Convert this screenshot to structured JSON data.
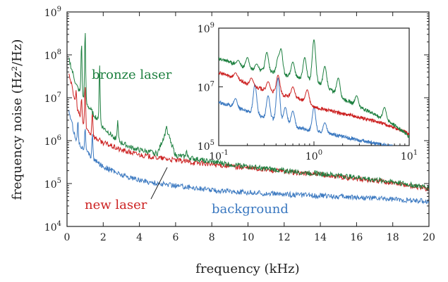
{
  "chart_data": {
    "type": "line",
    "main": {
      "xlabel": "frequency (kHz)",
      "ylabel": "frequency noise (Hz²/Hz)",
      "xlim": [
        0,
        20
      ],
      "ylim": [
        10000,
        1000000000
      ],
      "yscale": "log",
      "xticks": [
        "0",
        "2",
        "4",
        "6",
        "8",
        "10",
        "12",
        "14",
        "16",
        "18",
        "20"
      ],
      "yticks": [
        {
          "base": "10",
          "exp": "4"
        },
        {
          "base": "10",
          "exp": "5"
        },
        {
          "base": "10",
          "exp": "6"
        },
        {
          "base": "10",
          "exp": "7"
        },
        {
          "base": "10",
          "exp": "8"
        },
        {
          "base": "10",
          "exp": "9"
        }
      ],
      "grid": false,
      "series": [
        {
          "name": "bronze laser",
          "color": "#1e8040",
          "x": [
            0.1,
            0.5,
            1,
            1.5,
            2,
            2.5,
            3,
            3.5,
            4,
            5,
            5.5,
            6,
            6.5,
            7,
            8,
            10,
            12,
            14,
            16,
            18,
            20
          ],
          "y": [
            80000000,
            20000000,
            8000000,
            4000000,
            2000000,
            1300000,
            900000,
            700000,
            600000,
            500000,
            1800000,
            450000,
            420000,
            380000,
            320000,
            250000,
            200000,
            170000,
            140000,
            110000,
            80000
          ],
          "peaks": [
            [
              0.8,
              200000000
            ],
            [
              1.0,
              400000000
            ],
            [
              1.8,
              60000000
            ],
            [
              2.8,
              3000000
            ],
            [
              5.5,
              2200000
            ],
            [
              6.6,
              600000
            ]
          ]
        },
        {
          "name": "new laser",
          "color": "#cc2222",
          "x": [
            0.1,
            0.5,
            1,
            1.5,
            2,
            3,
            4,
            5,
            6,
            7,
            8,
            10,
            12,
            14,
            16,
            18,
            20
          ],
          "y": [
            40000000,
            6000000,
            2000000,
            1200000,
            900000,
            600000,
            470000,
            400000,
            350000,
            310000,
            280000,
            230000,
            190000,
            160000,
            130000,
            105000,
            75000
          ],
          "peaks": [
            [
              0.5,
              15000000
            ],
            [
              0.8,
              10000000
            ],
            [
              1.0,
              20000000
            ],
            [
              1.4,
              5000000
            ]
          ]
        },
        {
          "name": "background",
          "color": "#3a78c0",
          "x": [
            0.1,
            0.5,
            1,
            1.5,
            2,
            3,
            4,
            5,
            6,
            7,
            8,
            10,
            12,
            14,
            16,
            18,
            20
          ],
          "y": [
            5000000,
            1000000,
            600000,
            350000,
            250000,
            160000,
            120000,
            100000,
            90000,
            80000,
            70000,
            62000,
            56000,
            52000,
            48000,
            43000,
            38000
          ],
          "peaks": [
            [
              0.6,
              3000000
            ],
            [
              1.0,
              2000000
            ],
            [
              1.4,
              1500000
            ]
          ]
        }
      ],
      "annotations": [
        {
          "text": "bronze laser",
          "color": "#1e8040"
        },
        {
          "text": "new laser",
          "color": "#cc2222"
        },
        {
          "text": "background",
          "color": "#3a78c0"
        }
      ]
    },
    "inset": {
      "xscale": "log",
      "yscale": "log",
      "xlim": [
        0.1,
        10
      ],
      "ylim": [
        100000,
        1000000000
      ],
      "xticks": [
        {
          "base": "10",
          "exp": "-1"
        },
        {
          "base": "10",
          "exp": "0"
        },
        {
          "base": "10",
          "exp": "1"
        }
      ],
      "yticks": [
        {
          "base": "10",
          "exp": "5"
        },
        {
          "base": "10",
          "exp": "7"
        },
        {
          "base": "10",
          "exp": "9"
        }
      ],
      "series": [
        {
          "name": "bronze laser",
          "color": "#1e8040",
          "x": [
            0.1,
            0.15,
            0.2,
            0.3,
            0.5,
            0.7,
            1,
            1.5,
            2,
            3,
            5,
            7,
            10
          ],
          "y": [
            90000000,
            60000000,
            40000000,
            35000000,
            25000000,
            20000000,
            15000000,
            8000000,
            4000000,
            2000000,
            900000,
            500000,
            200000
          ],
          "peaks": [
            [
              0.16,
              80000000
            ],
            [
              0.2,
              100000000
            ],
            [
              0.25,
              60000000
            ],
            [
              0.32,
              150000000
            ],
            [
              0.42,
              90000000
            ],
            [
              0.45,
              200000000
            ],
            [
              0.6,
              70000000
            ],
            [
              0.8,
              100000000
            ],
            [
              1.0,
              400000000
            ],
            [
              1.3,
              50000000
            ],
            [
              1.8,
              20000000
            ],
            [
              2.8,
              5000000
            ],
            [
              5.5,
              2000000
            ]
          ]
        },
        {
          "name": "new laser",
          "color": "#cc2222",
          "x": [
            0.1,
            0.15,
            0.2,
            0.3,
            0.5,
            0.7,
            1,
            1.5,
            2,
            3,
            5,
            7,
            10
          ],
          "y": [
            30000000,
            20000000,
            12000000,
            8000000,
            5000000,
            4000000,
            2000000,
            1500000,
            1200000,
            900000,
            600000,
            400000,
            250000
          ],
          "peaks": [
            [
              0.15,
              30000000
            ],
            [
              0.22,
              20000000
            ],
            [
              0.33,
              15000000
            ],
            [
              0.42,
              25000000
            ],
            [
              0.6,
              10000000
            ],
            [
              0.85,
              8000000
            ]
          ]
        },
        {
          "name": "background",
          "color": "#3a78c0",
          "x": [
            0.1,
            0.15,
            0.2,
            0.3,
            0.5,
            0.7,
            1,
            1.5,
            2,
            3,
            5,
            7,
            10
          ],
          "y": [
            3000000,
            2000000,
            1500000,
            900000,
            600000,
            400000,
            300000,
            250000,
            200000,
            150000,
            110000,
            90000,
            80000
          ],
          "peaks": [
            [
              0.15,
              4000000
            ],
            [
              0.24,
              12000000
            ],
            [
              0.33,
              5000000
            ],
            [
              0.42,
              20000000
            ],
            [
              0.5,
              2000000
            ],
            [
              0.6,
              1500000
            ],
            [
              1.0,
              2000000
            ],
            [
              1.3,
              600000
            ]
          ]
        }
      ]
    }
  }
}
